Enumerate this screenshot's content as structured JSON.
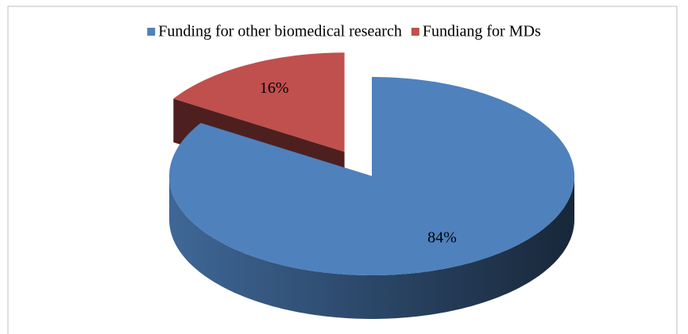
{
  "chart_data": {
    "type": "pie",
    "categories": [
      "Funding for other biomedical research",
      "Fundiang for MDs"
    ],
    "values": [
      84,
      16
    ],
    "value_labels": [
      "84%",
      "16%"
    ],
    "colors": [
      "#4f81bd",
      "#c0504d"
    ],
    "exploded": [
      false,
      true
    ],
    "legend": "top"
  }
}
